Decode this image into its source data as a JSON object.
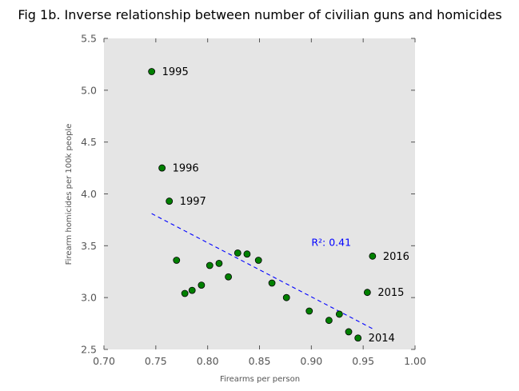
{
  "chart_data": {
    "type": "scatter",
    "title": "Fig 1b. Inverse relationship between number of civilian guns and homicides",
    "xlabel": "Firearms per person",
    "ylabel": "Firearm homicides per 100k people",
    "xlim": [
      0.7,
      1.0
    ],
    "ylim": [
      2.5,
      5.5
    ],
    "x_ticks": [
      "0.70",
      "0.75",
      "0.80",
      "0.85",
      "0.90",
      "0.95",
      "1.00"
    ],
    "y_ticks": [
      "2.5",
      "3.0",
      "3.5",
      "4.0",
      "4.5",
      "5.0",
      "5.5"
    ],
    "grid": false,
    "background": "#e5e5e5",
    "marker_color": "#008000",
    "points": [
      {
        "x": 0.746,
        "y": 5.18,
        "label": "1995"
      },
      {
        "x": 0.756,
        "y": 4.25,
        "label": "1996"
      },
      {
        "x": 0.763,
        "y": 3.93,
        "label": "1997"
      },
      {
        "x": 0.77,
        "y": 3.36,
        "label": ""
      },
      {
        "x": 0.778,
        "y": 3.04,
        "label": ""
      },
      {
        "x": 0.785,
        "y": 3.07,
        "label": ""
      },
      {
        "x": 0.794,
        "y": 3.12,
        "label": ""
      },
      {
        "x": 0.802,
        "y": 3.31,
        "label": ""
      },
      {
        "x": 0.811,
        "y": 3.33,
        "label": ""
      },
      {
        "x": 0.82,
        "y": 3.2,
        "label": ""
      },
      {
        "x": 0.829,
        "y": 3.43,
        "label": ""
      },
      {
        "x": 0.838,
        "y": 3.42,
        "label": ""
      },
      {
        "x": 0.849,
        "y": 3.36,
        "label": ""
      },
      {
        "x": 0.862,
        "y": 3.14,
        "label": ""
      },
      {
        "x": 0.876,
        "y": 3.0,
        "label": ""
      },
      {
        "x": 0.898,
        "y": 2.87,
        "label": ""
      },
      {
        "x": 0.917,
        "y": 2.78,
        "label": ""
      },
      {
        "x": 0.927,
        "y": 2.84,
        "label": ""
      },
      {
        "x": 0.936,
        "y": 2.67,
        "label": ""
      },
      {
        "x": 0.945,
        "y": 2.61,
        "label": "2014"
      },
      {
        "x": 0.954,
        "y": 3.05,
        "label": "2015"
      },
      {
        "x": 0.959,
        "y": 3.4,
        "label": "2016"
      }
    ],
    "trendline": {
      "x": [
        0.746,
        0.959
      ],
      "y": [
        3.81,
        2.7
      ],
      "color": "#0000ff",
      "style": "dashed",
      "annotation": "R²: 0.41",
      "annotation_x": 0.9,
      "annotation_y": 3.5
    }
  }
}
